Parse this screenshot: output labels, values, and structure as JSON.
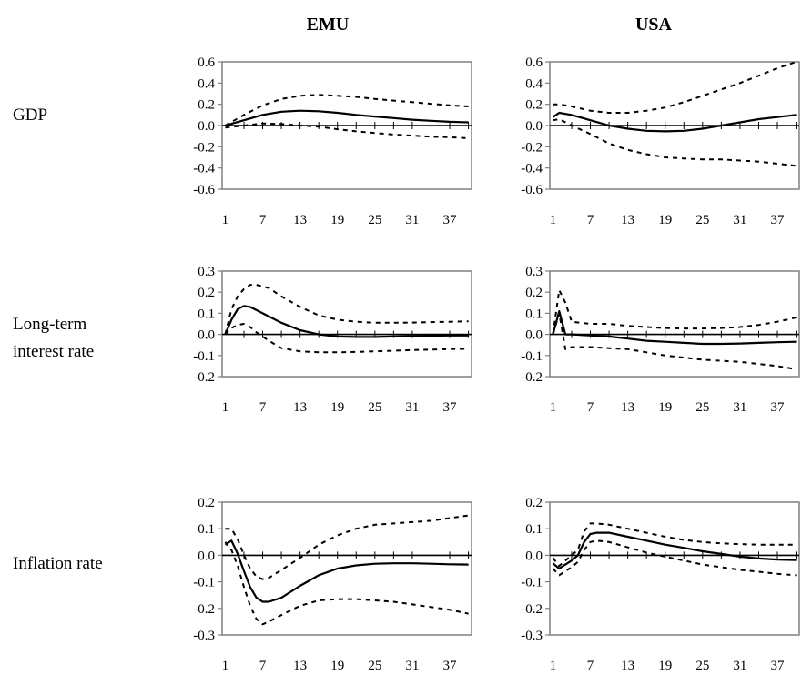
{
  "column_titles": [
    "EMU",
    "USA"
  ],
  "row_labels": [
    {
      "line1": "GDP",
      "line2": ""
    },
    {
      "line1": "Long-term",
      "line2": "interest rate"
    },
    {
      "line1": "Inflation rate",
      "line2": ""
    }
  ],
  "chart_data": [
    {
      "type": "line",
      "region": "EMU",
      "variable": "GDP",
      "ylim": [
        -0.6,
        0.6
      ],
      "yticks": [
        "0.6",
        "0.4",
        "0.2",
        "0.0",
        "-0.2",
        "-0.4",
        "-0.6"
      ],
      "xticks": [
        "1",
        "7",
        "13",
        "19",
        "25",
        "31",
        "37"
      ],
      "x": [
        1,
        4,
        7,
        10,
        13,
        16,
        19,
        22,
        25,
        28,
        31,
        34,
        37,
        40
      ],
      "series": [
        {
          "role": "estimate",
          "values": [
            0.0,
            0.05,
            0.1,
            0.13,
            0.14,
            0.135,
            0.12,
            0.1,
            0.085,
            0.07,
            0.055,
            0.045,
            0.035,
            0.03
          ]
        },
        {
          "role": "upper",
          "values": [
            0.0,
            0.1,
            0.19,
            0.25,
            0.28,
            0.29,
            0.28,
            0.27,
            0.25,
            0.235,
            0.22,
            0.205,
            0.19,
            0.18
          ]
        },
        {
          "role": "lower",
          "values": [
            -0.02,
            0.0,
            0.02,
            0.015,
            0.0,
            -0.01,
            -0.035,
            -0.055,
            -0.07,
            -0.085,
            -0.095,
            -0.105,
            -0.11,
            -0.12
          ]
        }
      ]
    },
    {
      "type": "line",
      "region": "USA",
      "variable": "GDP",
      "ylim": [
        -0.6,
        0.6
      ],
      "yticks": [
        "0.6",
        "0.4",
        "0.2",
        "0.0",
        "-0.2",
        "-0.4",
        "-0.6"
      ],
      "xticks": [
        "1",
        "7",
        "13",
        "19",
        "25",
        "31",
        "37"
      ],
      "x": [
        1,
        2,
        4,
        7,
        10,
        13,
        16,
        19,
        22,
        25,
        28,
        31,
        34,
        37,
        40
      ],
      "series": [
        {
          "role": "estimate",
          "values": [
            0.08,
            0.12,
            0.1,
            0.05,
            0.0,
            -0.03,
            -0.05,
            -0.055,
            -0.05,
            -0.03,
            0.0,
            0.03,
            0.06,
            0.08,
            0.1
          ]
        },
        {
          "role": "upper",
          "values": [
            0.2,
            0.2,
            0.18,
            0.14,
            0.12,
            0.12,
            0.14,
            0.17,
            0.22,
            0.28,
            0.34,
            0.4,
            0.47,
            0.54,
            0.6
          ]
        },
        {
          "role": "lower",
          "values": [
            0.05,
            0.06,
            0.0,
            -0.08,
            -0.17,
            -0.23,
            -0.27,
            -0.3,
            -0.31,
            -0.32,
            -0.32,
            -0.33,
            -0.34,
            -0.36,
            -0.38
          ]
        }
      ]
    },
    {
      "type": "line",
      "region": "EMU",
      "variable": "Long-term interest rate",
      "ylim": [
        -0.2,
        0.3
      ],
      "yticks": [
        "0.3",
        "0.2",
        "0.1",
        "0.0",
        "-0.1",
        "-0.2"
      ],
      "xticks": [
        "1",
        "7",
        "13",
        "19",
        "25",
        "31",
        "37"
      ],
      "x": [
        1,
        2,
        3,
        4,
        5,
        6,
        8,
        10,
        13,
        16,
        19,
        22,
        25,
        28,
        31,
        34,
        37,
        40
      ],
      "series": [
        {
          "role": "estimate",
          "values": [
            0.0,
            0.07,
            0.12,
            0.135,
            0.13,
            0.115,
            0.085,
            0.055,
            0.02,
            0.0,
            -0.01,
            -0.012,
            -0.012,
            -0.01,
            -0.008,
            -0.006,
            -0.005,
            -0.005
          ]
        },
        {
          "role": "upper",
          "values": [
            0.0,
            0.12,
            0.18,
            0.215,
            0.235,
            0.235,
            0.22,
            0.18,
            0.13,
            0.09,
            0.07,
            0.06,
            0.055,
            0.055,
            0.056,
            0.058,
            0.06,
            0.062
          ]
        },
        {
          "role": "lower",
          "values": [
            0.0,
            0.03,
            0.045,
            0.05,
            0.035,
            0.01,
            -0.03,
            -0.065,
            -0.08,
            -0.085,
            -0.085,
            -0.083,
            -0.08,
            -0.077,
            -0.074,
            -0.072,
            -0.07,
            -0.068
          ]
        }
      ]
    },
    {
      "type": "line",
      "region": "USA",
      "variable": "Long-term interest rate",
      "ylim": [
        -0.2,
        0.3
      ],
      "yticks": [
        "0.3",
        "0.2",
        "0.1",
        "0.0",
        "-0.1",
        "-0.2"
      ],
      "xticks": [
        "1",
        "7",
        "13",
        "19",
        "25",
        "31",
        "37"
      ],
      "x": [
        1,
        2,
        3,
        4,
        7,
        10,
        13,
        16,
        19,
        22,
        25,
        28,
        31,
        34,
        37,
        40
      ],
      "series": [
        {
          "role": "estimate",
          "values": [
            0.0,
            0.11,
            0.0,
            0.0,
            -0.005,
            -0.01,
            -0.02,
            -0.03,
            -0.035,
            -0.04,
            -0.045,
            -0.045,
            -0.043,
            -0.04,
            -0.037,
            -0.035
          ]
        },
        {
          "role": "upper",
          "values": [
            0.0,
            0.21,
            0.15,
            0.06,
            0.05,
            0.05,
            0.04,
            0.035,
            0.03,
            0.028,
            0.028,
            0.03,
            0.035,
            0.045,
            0.06,
            0.08
          ]
        },
        {
          "role": "lower",
          "values": [
            0.0,
            0.1,
            -0.07,
            -0.06,
            -0.06,
            -0.065,
            -0.07,
            -0.085,
            -0.1,
            -0.11,
            -0.12,
            -0.125,
            -0.13,
            -0.14,
            -0.15,
            -0.165
          ]
        }
      ]
    },
    {
      "type": "line",
      "region": "EMU",
      "variable": "Inflation rate",
      "ylim": [
        -0.3,
        0.2
      ],
      "yticks": [
        "0.2",
        "0.1",
        "0.0",
        "-0.1",
        "-0.2",
        "-0.3"
      ],
      "xticks": [
        "1",
        "7",
        "13",
        "19",
        "25",
        "31",
        "37"
      ],
      "x": [
        1,
        2,
        3,
        4,
        5,
        6,
        7,
        8,
        10,
        13,
        16,
        19,
        22,
        25,
        28,
        31,
        34,
        37,
        40
      ],
      "series": [
        {
          "role": "estimate",
          "values": [
            0.04,
            0.055,
            0.005,
            -0.06,
            -0.12,
            -0.16,
            -0.175,
            -0.175,
            -0.16,
            -0.115,
            -0.075,
            -0.05,
            -0.038,
            -0.032,
            -0.03,
            -0.03,
            -0.032,
            -0.034,
            -0.035
          ]
        },
        {
          "role": "upper",
          "values": [
            0.1,
            0.1,
            0.06,
            0.0,
            -0.05,
            -0.08,
            -0.09,
            -0.085,
            -0.055,
            -0.01,
            0.04,
            0.075,
            0.1,
            0.115,
            0.12,
            0.125,
            0.13,
            0.14,
            0.15
          ]
        },
        {
          "role": "lower",
          "values": [
            0.05,
            0.02,
            -0.04,
            -0.12,
            -0.19,
            -0.24,
            -0.26,
            -0.25,
            -0.225,
            -0.19,
            -0.17,
            -0.165,
            -0.165,
            -0.17,
            -0.175,
            -0.185,
            -0.195,
            -0.205,
            -0.22
          ]
        }
      ]
    },
    {
      "type": "line",
      "region": "USA",
      "variable": "Inflation rate",
      "ylim": [
        -0.3,
        0.2
      ],
      "yticks": [
        "0.2",
        "0.1",
        "0.0",
        "-0.1",
        "-0.2",
        "-0.3"
      ],
      "xticks": [
        "1",
        "7",
        "13",
        "19",
        "25",
        "31",
        "37"
      ],
      "x": [
        1,
        2,
        3,
        4,
        5,
        6,
        7,
        8,
        10,
        13,
        16,
        19,
        22,
        25,
        28,
        31,
        34,
        37,
        40
      ],
      "series": [
        {
          "role": "estimate",
          "values": [
            -0.03,
            -0.05,
            -0.035,
            -0.02,
            0.0,
            0.05,
            0.08,
            0.085,
            0.085,
            0.07,
            0.055,
            0.04,
            0.028,
            0.015,
            0.005,
            -0.005,
            -0.012,
            -0.016,
            -0.018
          ]
        },
        {
          "role": "upper",
          "values": [
            -0.01,
            -0.04,
            -0.02,
            0.0,
            0.02,
            0.09,
            0.12,
            0.12,
            0.115,
            0.1,
            0.085,
            0.07,
            0.058,
            0.05,
            0.045,
            0.042,
            0.04,
            0.04,
            0.04
          ]
        },
        {
          "role": "lower",
          "values": [
            -0.05,
            -0.075,
            -0.06,
            -0.045,
            -0.025,
            0.02,
            0.05,
            0.055,
            0.05,
            0.03,
            0.01,
            -0.005,
            -0.02,
            -0.035,
            -0.045,
            -0.055,
            -0.062,
            -0.07,
            -0.075
          ]
        }
      ]
    }
  ]
}
